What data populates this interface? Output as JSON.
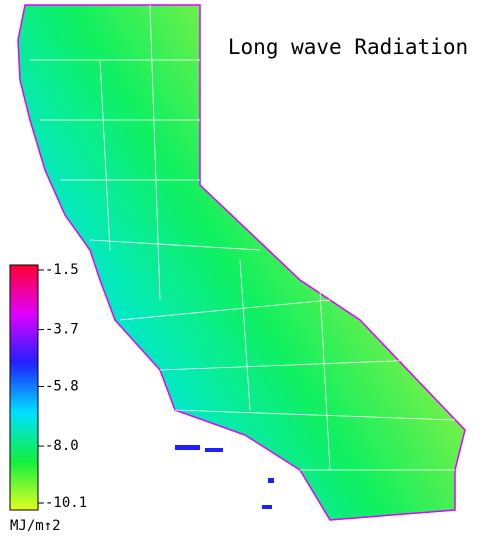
{
  "title": "Long wave Radiation",
  "colorbar": {
    "lim": [
      -10.1,
      -1.5
    ],
    "ticks": [
      -1.5,
      -3.7,
      -5.8,
      {
        "value": -8,
        "label": "-8.0"
      },
      -10.1
    ],
    "colors": [
      "#ff0030",
      "#e000ff",
      "#2020ff",
      "#00e0ff",
      "#10f040",
      "#e0ff20"
    ],
    "unit": "MJ/m↑2"
  }
}
